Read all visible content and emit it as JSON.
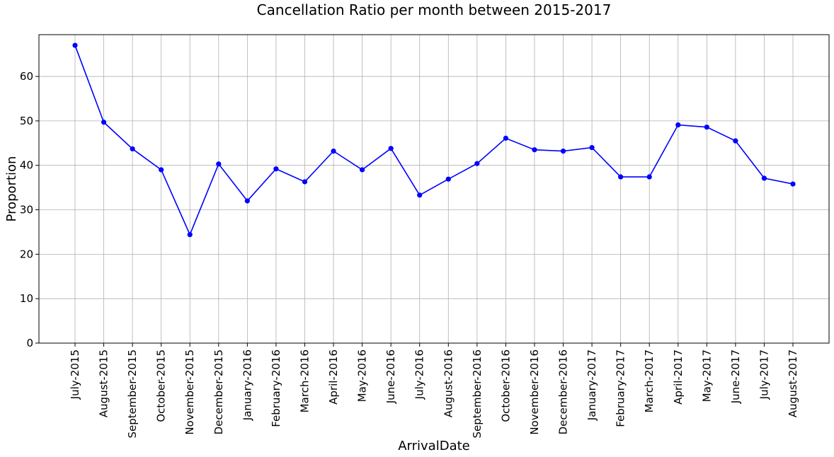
{
  "chart_data": {
    "type": "line",
    "title": "Cancellation Ratio per month between 2015-2017",
    "xlabel": "ArrivalDate",
    "ylabel": "Proportion",
    "categories": [
      "July-2015",
      "August-2015",
      "September-2015",
      "October-2015",
      "November-2015",
      "December-2015",
      "January-2016",
      "February-2016",
      "March-2016",
      "April-2016",
      "May-2016",
      "June-2016",
      "July-2016",
      "August-2016",
      "September-2016",
      "October-2016",
      "November-2016",
      "December-2016",
      "January-2017",
      "February-2017",
      "March-2017",
      "April-2017",
      "May-2017",
      "June-2017",
      "July-2017",
      "August-2017"
    ],
    "values": [
      67.0,
      49.7,
      43.7,
      39.0,
      24.4,
      40.3,
      32.0,
      39.2,
      36.3,
      43.2,
      39.0,
      43.8,
      33.3,
      36.9,
      40.4,
      46.1,
      43.5,
      43.2,
      44.0,
      37.4,
      37.4,
      49.1,
      48.6,
      45.5,
      37.1,
      35.8
    ],
    "yticks": [
      "0",
      "10",
      "20",
      "30",
      "40",
      "50",
      "60"
    ],
    "ylim": [
      0,
      69.4
    ],
    "grid": true,
    "marker": "circle",
    "line_color": "#0000ff",
    "grid_color": "#b0b0b0"
  }
}
